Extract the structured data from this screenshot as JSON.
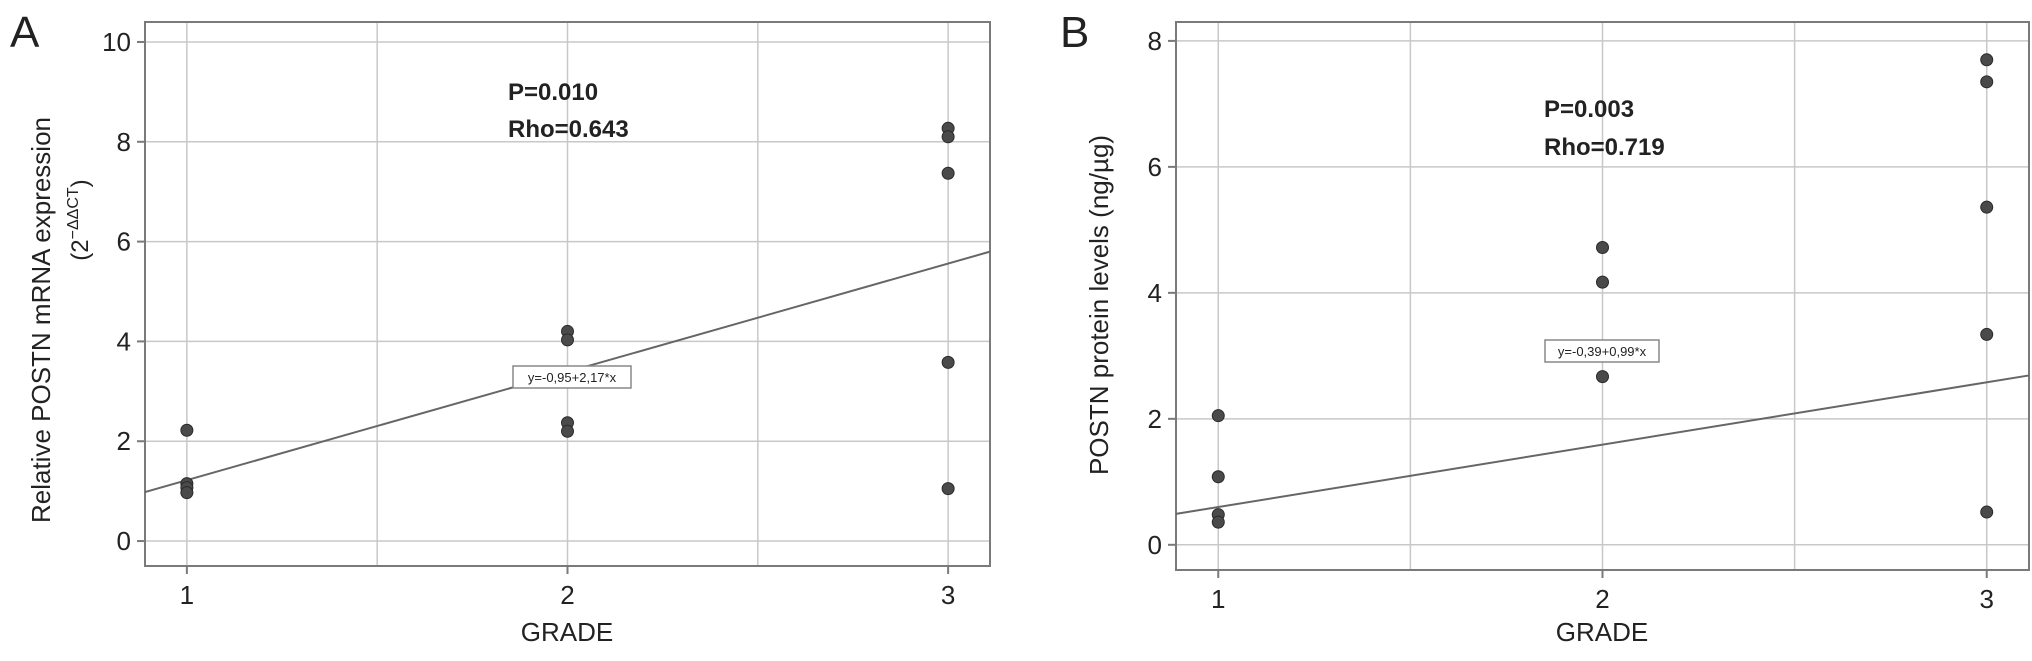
{
  "figure": {
    "panels": [
      {
        "letter": "A",
        "stats_p": "P=0.010",
        "stats_rho": "Rho=0.643",
        "equation": "y=-0,95+2,17*x"
      },
      {
        "letter": "B",
        "stats_p": "P=0.003",
        "stats_rho": "Rho=0.719",
        "equation": "y=-0,39+0,99*x"
      }
    ]
  },
  "chart_data": [
    {
      "type": "scatter",
      "panel": "A",
      "xlabel": "GRADE",
      "ylabel": "Relative POSTN mRNA expression",
      "ylabel_unit_prefix": "(2",
      "ylabel_unit_exponent": "−ΔΔCT",
      "ylabel_unit_suffix": ")",
      "xlim": [
        0.89,
        3.11
      ],
      "ylim": [
        -0.5,
        10.4
      ],
      "x_ticks": [
        1,
        2,
        3
      ],
      "x_tick_labels": [
        "1",
        "2",
        "3"
      ],
      "y_ticks": [
        0,
        2,
        4,
        6,
        8,
        10
      ],
      "y_tick_labels": [
        "0",
        "2",
        "4",
        "6",
        "8",
        "10"
      ],
      "x_gridlines": [
        1,
        1.5,
        2,
        2.5,
        3
      ],
      "y_gridlines": [
        0,
        2,
        4,
        6,
        8,
        10
      ],
      "grid": true,
      "points": [
        {
          "x": 1,
          "y": 2.22
        },
        {
          "x": 1,
          "y": 1.15
        },
        {
          "x": 1,
          "y": 1.07
        },
        {
          "x": 1,
          "y": 0.97
        },
        {
          "x": 2,
          "y": 4.2
        },
        {
          "x": 2,
          "y": 4.03
        },
        {
          "x": 2,
          "y": 2.37
        },
        {
          "x": 2,
          "y": 2.2
        },
        {
          "x": 3,
          "y": 8.27
        },
        {
          "x": 3,
          "y": 8.1
        },
        {
          "x": 3,
          "y": 7.37
        },
        {
          "x": 3,
          "y": 3.58
        },
        {
          "x": 3,
          "y": 1.05
        }
      ],
      "fit_line": {
        "intercept": -0.95,
        "slope": 2.17
      },
      "stats": {
        "p": 0.01,
        "rho": 0.643
      }
    },
    {
      "type": "scatter",
      "panel": "B",
      "xlabel": "GRADE",
      "ylabel": "POSTN protein levels (ng/µg)",
      "xlim": [
        0.89,
        3.11
      ],
      "ylim": [
        -0.4,
        8.3
      ],
      "x_ticks": [
        1,
        2,
        3
      ],
      "x_tick_labels": [
        "1",
        "2",
        "3"
      ],
      "y_ticks": [
        0,
        2,
        4,
        6,
        8
      ],
      "y_tick_labels": [
        "0",
        "2",
        "4",
        "6",
        "8"
      ],
      "x_gridlines": [
        1,
        1.5,
        2,
        2.5,
        3
      ],
      "y_gridlines": [
        0,
        2,
        4,
        6,
        8
      ],
      "grid": true,
      "points": [
        {
          "x": 1,
          "y": 2.05
        },
        {
          "x": 1,
          "y": 1.08
        },
        {
          "x": 1,
          "y": 0.48
        },
        {
          "x": 1,
          "y": 0.36
        },
        {
          "x": 2,
          "y": 4.72
        },
        {
          "x": 2,
          "y": 4.17
        },
        {
          "x": 2,
          "y": 2.67
        },
        {
          "x": 3,
          "y": 7.7
        },
        {
          "x": 3,
          "y": 7.35
        },
        {
          "x": 3,
          "y": 5.36
        },
        {
          "x": 3,
          "y": 3.34
        },
        {
          "x": 3,
          "y": 0.52
        }
      ],
      "fit_line": {
        "intercept": -0.39,
        "slope": 0.99
      },
      "stats": {
        "p": 0.003,
        "rho": 0.719
      }
    }
  ]
}
